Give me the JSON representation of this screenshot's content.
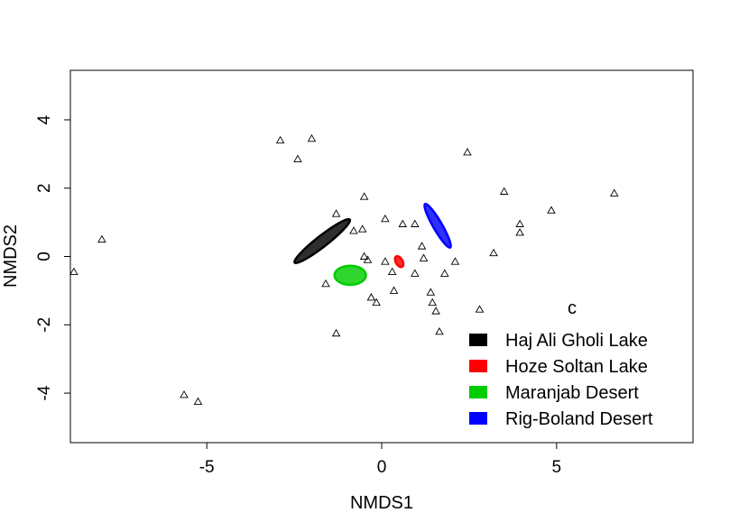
{
  "chart_data": {
    "type": "scatter",
    "xlabel": "NMDS1",
    "ylabel": "NMDS2",
    "xlim": [
      -8.9,
      8.9
    ],
    "ylim": [
      -5.45,
      5.45
    ],
    "x_ticks": [
      -5,
      0,
      5
    ],
    "x_tick_labels": [
      "-5",
      "0",
      "5"
    ],
    "y_ticks": [
      -4,
      -2,
      0,
      2,
      4
    ],
    "y_tick_labels": [
      "-4",
      "-2",
      "0",
      "2",
      "4"
    ],
    "grid": false,
    "points_marker": "open-triangle",
    "points": [
      [
        -8.8,
        -0.45
      ],
      [
        -8.0,
        0.5
      ],
      [
        -5.65,
        -4.05
      ],
      [
        -5.25,
        -4.25
      ],
      [
        -2.9,
        3.4
      ],
      [
        -2.0,
        3.45
      ],
      [
        -2.4,
        2.85
      ],
      [
        -1.3,
        1.25
      ],
      [
        -0.5,
        1.75
      ],
      [
        -0.8,
        0.75
      ],
      [
        -0.55,
        0.8
      ],
      [
        -0.5,
        0.0
      ],
      [
        -0.4,
        -0.1
      ],
      [
        -1.6,
        -0.8
      ],
      [
        -0.3,
        -1.2
      ],
      [
        -0.15,
        -1.35
      ],
      [
        -1.3,
        -2.25
      ],
      [
        0.1,
        1.1
      ],
      [
        0.6,
        0.95
      ],
      [
        0.95,
        0.95
      ],
      [
        0.1,
        -0.15
      ],
      [
        0.3,
        -0.45
      ],
      [
        0.35,
        -1.0
      ],
      [
        0.95,
        -0.5
      ],
      [
        1.15,
        0.3
      ],
      [
        1.2,
        -0.05
      ],
      [
        1.4,
        -1.05
      ],
      [
        1.45,
        -1.35
      ],
      [
        1.55,
        -1.6
      ],
      [
        1.65,
        -2.2
      ],
      [
        1.8,
        -0.5
      ],
      [
        2.1,
        -0.15
      ],
      [
        2.45,
        3.05
      ],
      [
        2.8,
        -1.55
      ],
      [
        3.2,
        0.1
      ],
      [
        3.5,
        1.9
      ],
      [
        3.95,
        0.95
      ],
      [
        3.95,
        0.7
      ],
      [
        4.85,
        1.35
      ],
      [
        6.65,
        1.85
      ]
    ],
    "ellipses": [
      {
        "name": "Haj Ali Gholi Lake",
        "color": "#000000",
        "cx": -1.7,
        "cy": 0.45,
        "rx": 1.0,
        "ry": 0.16,
        "angle_deg": -38
      },
      {
        "name": "Hoze Soltan Lake",
        "color": "#ff0000",
        "cx": 0.5,
        "cy": -0.15,
        "rx": 0.17,
        "ry": 0.1,
        "angle_deg": 60
      },
      {
        "name": "Maranjab Desert",
        "color": "#00cd00",
        "cx": -0.9,
        "cy": -0.55,
        "rx": 0.45,
        "ry": 0.28,
        "angle_deg": 0
      },
      {
        "name": "Rig-Boland Desert",
        "color": "#0000ff",
        "cx": 1.6,
        "cy": 0.9,
        "rx": 0.72,
        "ry": 0.13,
        "angle_deg": 60
      }
    ],
    "legend": {
      "title": "c",
      "position": "bottom-right",
      "entries": [
        {
          "label": "Haj Ali Gholi Lake",
          "color": "#000000"
        },
        {
          "label": "Hoze Soltan Lake",
          "color": "#ff0000"
        },
        {
          "label": "Maranjab Desert",
          "color": "#00cd00"
        },
        {
          "label": "Rig-Boland Desert",
          "color": "#0000ff"
        }
      ]
    }
  }
}
